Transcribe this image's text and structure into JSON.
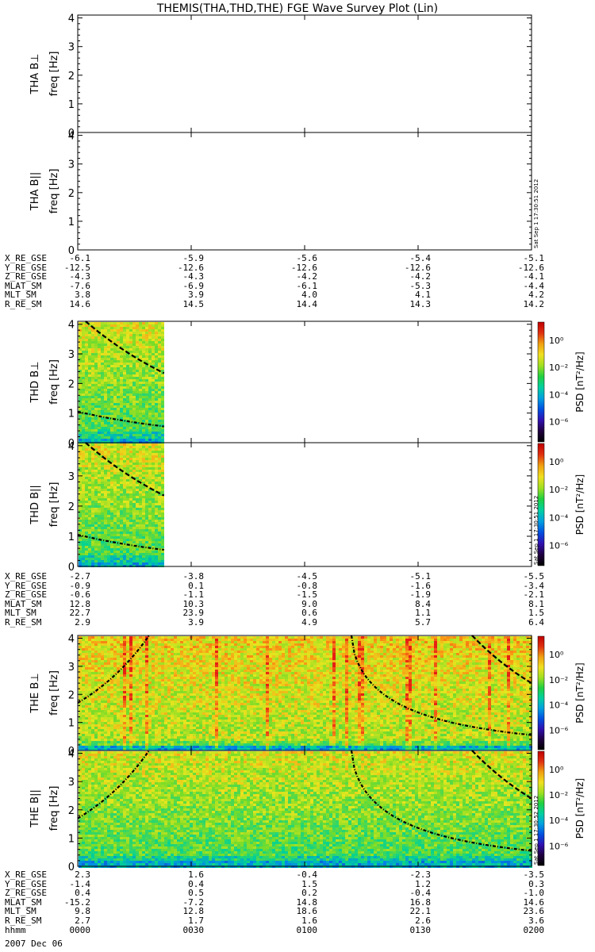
{
  "title": "THEMIS(THA,THD,THE) FGE Wave Survey Plot (Lin)",
  "stamp": "Sat Sep  1 17:30:51 2012",
  "stamp_the": "Sat Sep  1 17:30:52 2012",
  "colorbar": {
    "label": "PSD [nT²/Hz]",
    "ticks": [
      "10⁰",
      "10⁻²",
      "10⁻⁴",
      "10⁻⁶"
    ]
  },
  "date_line": "2007 Dec 06",
  "chart_data": [
    {
      "type": "heatmap",
      "panel": "THA B⊥",
      "ylabel": "freq [Hz]",
      "ylim": [
        0,
        4.1
      ],
      "yticks": [
        "0",
        "1",
        "2",
        "3",
        "4"
      ],
      "has_data": false
    },
    {
      "type": "heatmap",
      "panel": "THA B||",
      "ylabel": "freq [Hz]",
      "ylim": [
        0,
        4.1
      ],
      "yticks": [
        "0",
        "1",
        "2",
        "3",
        "4"
      ],
      "has_data": false
    },
    {
      "type": "heatmap",
      "panel": "THD B⊥",
      "ylabel": "freq [Hz]",
      "ylim": [
        0,
        4.1
      ],
      "yticks": [
        "0",
        "1",
        "2",
        "3",
        "4"
      ],
      "has_data": true,
      "data_end_fraction": 0.19,
      "cyclotron_curves": [
        [
          4.1,
          2.35
        ],
        [
          1.05,
          0.55
        ]
      ]
    },
    {
      "type": "heatmap",
      "panel": "THD B||",
      "ylabel": "freq [Hz]",
      "ylim": [
        0,
        4.1
      ],
      "yticks": [
        "0",
        "1",
        "2",
        "3",
        "4"
      ],
      "has_data": true,
      "data_end_fraction": 0.19,
      "cyclotron_curves": [
        [
          4.1,
          2.35
        ],
        [
          1.05,
          0.55
        ]
      ]
    },
    {
      "type": "heatmap",
      "panel": "THE B⊥",
      "ylabel": "freq [Hz]",
      "ylim": [
        0,
        4.1
      ],
      "yticks": [
        "0",
        "1",
        "2",
        "3",
        "4"
      ],
      "has_data": true,
      "data_end_fraction": 1.0,
      "x_time_ticks": [
        "0000",
        "0030",
        "0100",
        "0130",
        "0200"
      ]
    },
    {
      "type": "heatmap",
      "panel": "THE B||",
      "ylabel": "freq [Hz]",
      "ylim": [
        0,
        4.1
      ],
      "yticks": [
        "0",
        "1",
        "2",
        "3",
        "4"
      ],
      "has_data": true,
      "data_end_fraction": 1.0,
      "x_time_ticks": [
        "0000",
        "0030",
        "0100",
        "0130",
        "0200"
      ]
    }
  ],
  "ephem": [
    {
      "rows": [
        {
          "label": "X_RE_GSE",
          "values": [
            "-6.1",
            "-5.9",
            "-5.6",
            "-5.4",
            "-5.1"
          ]
        },
        {
          "label": "Y_RE_GSE",
          "values": [
            "-12.5",
            "-12.6",
            "-12.6",
            "-12.6",
            "-12.6"
          ]
        },
        {
          "label": "Z_RE_GSE",
          "values": [
            "-4.3",
            "-4.3",
            "-4.2",
            "-4.2",
            "-4.1"
          ]
        },
        {
          "label": "MLAT_SM",
          "values": [
            "-7.6",
            "-6.9",
            "-6.1",
            "-5.3",
            "-4.4"
          ]
        },
        {
          "label": "MLT_SM",
          "values": [
            "3.8",
            "3.9",
            "4.0",
            "4.1",
            "4.2"
          ]
        },
        {
          "label": "R_RE_SM",
          "values": [
            "14.6",
            "14.5",
            "14.4",
            "14.3",
            "14.2"
          ]
        }
      ]
    },
    {
      "rows": [
        {
          "label": "X_RE_GSE",
          "values": [
            "-2.7",
            "-3.8",
            "-4.5",
            "-5.1",
            "-5.5"
          ]
        },
        {
          "label": "Y_RE_GSE",
          "values": [
            "-0.9",
            "0.1",
            "-0.8",
            "-1.6",
            "-3.4"
          ]
        },
        {
          "label": "Z_RE_GSE",
          "values": [
            "-0.6",
            "-1.1",
            "-1.5",
            "-1.9",
            "-2.1"
          ]
        },
        {
          "label": "MLAT_SM",
          "values": [
            "12.8",
            "10.3",
            "9.0",
            "8.4",
            "8.1"
          ]
        },
        {
          "label": "MLT_SM",
          "values": [
            "22.7",
            "23.9",
            "0.6",
            "1.1",
            "1.5"
          ]
        },
        {
          "label": "R_RE_SM",
          "values": [
            "2.9",
            "3.9",
            "4.9",
            "5.7",
            "6.4"
          ]
        }
      ]
    },
    {
      "rows": [
        {
          "label": "X_RE_GSE",
          "values": [
            "2.3",
            "1.6",
            "-0.4",
            "-2.3",
            "-3.5"
          ]
        },
        {
          "label": "Y_RE_GSE",
          "values": [
            "-1.4",
            "0.4",
            "1.5",
            "1.2",
            "0.3"
          ]
        },
        {
          "label": "Z_RE_GSE",
          "values": [
            "0.4",
            "0.5",
            "0.2",
            "-0.4",
            "-1.0"
          ]
        },
        {
          "label": "MLAT_SM",
          "values": [
            "-15.2",
            "-7.2",
            "14.8",
            "16.8",
            "14.6"
          ]
        },
        {
          "label": "MLT_SM",
          "values": [
            "9.8",
            "12.8",
            "18.6",
            "22.1",
            "23.6"
          ]
        },
        {
          "label": "R_RE_SM",
          "values": [
            "2.7",
            "1.7",
            "1.6",
            "2.6",
            "3.6"
          ]
        },
        {
          "label": "hhmm",
          "values": [
            "0000",
            "0030",
            "0100",
            "0130",
            "0200"
          ]
        }
      ]
    }
  ]
}
